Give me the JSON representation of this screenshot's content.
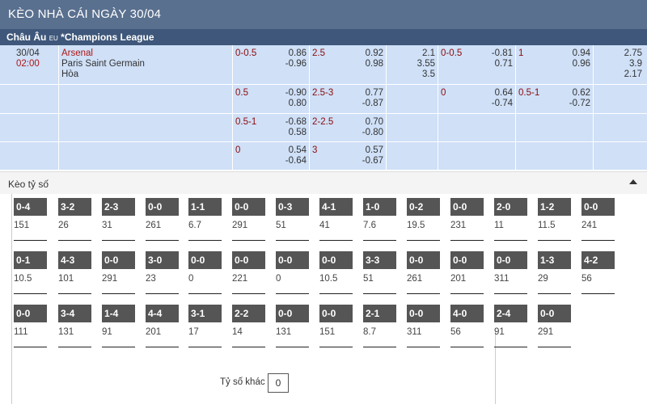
{
  "header": {
    "title": "KÈO NHÀ CÁI NGÀY 30/04"
  },
  "league": {
    "region": "Châu Âu",
    "tag": "EU",
    "name": "*Champions League"
  },
  "match": {
    "date": "30/04",
    "time": "02:00",
    "home": "Arsenal",
    "away": "Paris Saint Germain",
    "draw": "Hòa"
  },
  "odds_rows": [
    {
      "g1": {
        "label": "0-0.5",
        "v1": "0.86",
        "v2": "-0.96"
      },
      "g2": {
        "label": "2.5",
        "v1": "0.92",
        "v2": "0.98"
      },
      "x12a": [
        "2.1",
        "3.55",
        "3.5"
      ],
      "g3": {
        "label": "0-0.5",
        "v1": "-0.81",
        "v2": "0.71"
      },
      "g4": {
        "label": "1",
        "v1": "0.94",
        "v2": "0.96"
      },
      "x12b": [
        "2.75",
        "3.9",
        "2.17"
      ]
    },
    {
      "g1": {
        "label": "0.5",
        "v1": "-0.90",
        "v2": "0.80"
      },
      "g2": {
        "label": "2.5-3",
        "v1": "0.77",
        "v2": "-0.87"
      },
      "g3": {
        "label": "0",
        "v1": "0.64",
        "v2": "-0.74"
      },
      "g4": {
        "label": "0.5-1",
        "v1": "0.62",
        "v2": "-0.72"
      }
    },
    {
      "g1": {
        "label": "0.5-1",
        "v1": "-0.68",
        "v2": "0.58"
      },
      "g2": {
        "label": "2-2.5",
        "v1": "0.70",
        "v2": "-0.80"
      }
    },
    {
      "g1": {
        "label": "0",
        "v1": "0.54",
        "v2": "-0.64"
      },
      "g2": {
        "label": "3",
        "v1": "0.57",
        "v2": "-0.67"
      }
    }
  ],
  "correct_score": {
    "title": "Kèo tỷ số",
    "rows": [
      [
        {
          "score": "0-4",
          "odds": "151"
        },
        {
          "score": "3-2",
          "odds": "26"
        },
        {
          "score": "2-3",
          "odds": "31"
        },
        {
          "score": "0-0",
          "odds": "261"
        },
        {
          "score": "1-1",
          "odds": "6.7"
        },
        {
          "score": "0-0",
          "odds": "291"
        },
        {
          "score": "0-3",
          "odds": "51"
        },
        {
          "score": "4-1",
          "odds": "41"
        },
        {
          "score": "1-0",
          "odds": "7.6"
        },
        {
          "score": "0-2",
          "odds": "19.5"
        },
        {
          "score": "0-0",
          "odds": "231"
        },
        {
          "score": "2-0",
          "odds": "11"
        },
        {
          "score": "1-2",
          "odds": "11.5"
        },
        {
          "score": "0-0",
          "odds": "241"
        }
      ],
      [
        {
          "score": "0-1",
          "odds": "10.5"
        },
        {
          "score": "4-3",
          "odds": "101"
        },
        {
          "score": "0-0",
          "odds": "291"
        },
        {
          "score": "3-0",
          "odds": "23"
        },
        {
          "score": "0-0",
          "odds": "0"
        },
        {
          "score": "0-0",
          "odds": "221"
        },
        {
          "score": "0-0",
          "odds": "0"
        },
        {
          "score": "0-0",
          "odds": "10.5"
        },
        {
          "score": "3-3",
          "odds": "51"
        },
        {
          "score": "0-0",
          "odds": "261"
        },
        {
          "score": "0-0",
          "odds": "201"
        },
        {
          "score": "0-0",
          "odds": "311"
        },
        {
          "score": "1-3",
          "odds": "29"
        },
        {
          "score": "4-2",
          "odds": "56"
        }
      ],
      [
        {
          "score": "0-0",
          "odds": "111"
        },
        {
          "score": "3-4",
          "odds": "131"
        },
        {
          "score": "1-4",
          "odds": "91"
        },
        {
          "score": "4-4",
          "odds": "201"
        },
        {
          "score": "3-1",
          "odds": "17"
        },
        {
          "score": "2-2",
          "odds": "14"
        },
        {
          "score": "0-0",
          "odds": "131"
        },
        {
          "score": "0-0",
          "odds": "151"
        },
        {
          "score": "2-1",
          "odds": "8.7"
        },
        {
          "score": "0-0",
          "odds": "311"
        },
        {
          "score": "4-0",
          "odds": "56"
        },
        {
          "score": "2-4",
          "odds": "91"
        },
        {
          "score": "0-0",
          "odds": "291"
        }
      ]
    ],
    "other_label": "Tỷ số khác",
    "other_value": "0"
  }
}
